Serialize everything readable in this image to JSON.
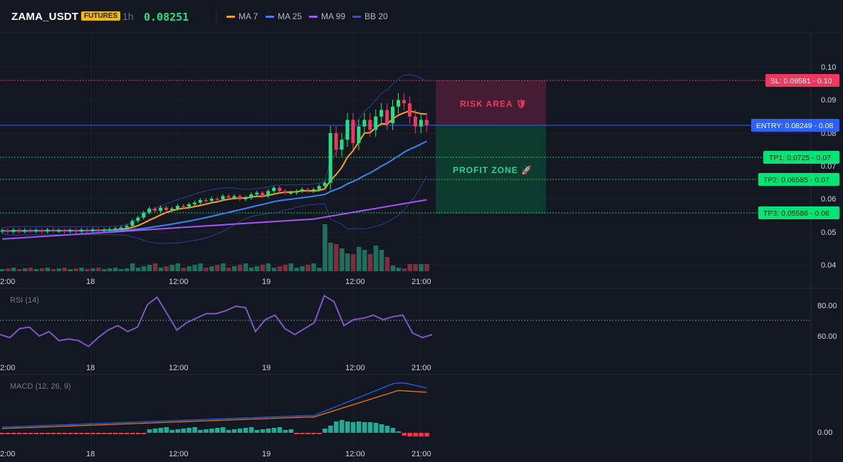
{
  "header": {
    "symbol": "ZAMA_USDT",
    "badge": "FUTURES",
    "interval": "1h",
    "price": "0.08251",
    "indicators": [
      {
        "label": "MA 7",
        "color": "#f7a21b"
      },
      {
        "label": "MA 25",
        "color": "#3b82f6"
      },
      {
        "label": "MA 99",
        "color": "#a855f7"
      },
      {
        "label": "BB 20",
        "color": "#3f51b5"
      }
    ]
  },
  "price_axis": {
    "ticks": [
      "0.10",
      "0.09",
      "0.08",
      "0.07",
      "0.06",
      "0.05",
      "0.04"
    ]
  },
  "levels": {
    "sl": {
      "label": "SL: 0.09581 - 0.10",
      "value": 0.09581,
      "color": "#f23660"
    },
    "entry": {
      "label": "ENTRY: 0.08249 - 0.08",
      "value": 0.08249,
      "color": "#2962ff"
    },
    "tp1": {
      "label": "TP1: 0.0725 - 0.07",
      "value": 0.0725,
      "color": "#00e676"
    },
    "tp2": {
      "label": "TP2: 0.06585 - 0.07",
      "value": 0.06585,
      "color": "#00e676"
    },
    "tp3": {
      "label": "TP3: 0.05586 - 0.06",
      "value": 0.05586,
      "color": "#00e676"
    }
  },
  "zones": {
    "risk_label": "RISK AREA 🛡",
    "profit_label": "PROFIT ZONE 🚀"
  },
  "time_axis": {
    "labels": [
      "2:00",
      "18",
      "12:00",
      "19",
      "12:00",
      "21:00"
    ]
  },
  "rsi": {
    "title": "RSI (14)",
    "ticks": [
      "80.00",
      "60.00"
    ]
  },
  "macd": {
    "title": "MACD (12, 26, 9)",
    "ticks": [
      "0.00"
    ]
  },
  "chart_data": {
    "type": "candlestick",
    "closes": [
      0.0506,
      0.0502,
      0.0508,
      0.0503,
      0.0507,
      0.0504,
      0.0507,
      0.0503,
      0.0508,
      0.0505,
      0.0506,
      0.0504,
      0.0507,
      0.0503,
      0.0508,
      0.0505,
      0.0509,
      0.0507,
      0.0508,
      0.051,
      0.0512,
      0.0515,
      0.052,
      0.0535,
      0.0545,
      0.056,
      0.0572,
      0.0565,
      0.0575,
      0.0568,
      0.0572,
      0.058,
      0.0578,
      0.0585,
      0.059,
      0.0598,
      0.0595,
      0.0602,
      0.06,
      0.061,
      0.0605,
      0.061,
      0.06,
      0.0605,
      0.0615,
      0.062,
      0.061,
      0.0625,
      0.0635,
      0.0625,
      0.062,
      0.062,
      0.0625,
      0.063,
      0.0625,
      0.063,
      0.064,
      0.065,
      0.08,
      0.075,
      0.078,
      0.084,
      0.077,
      0.082,
      0.084,
      0.081,
      0.085,
      0.087,
      0.083,
      0.088,
      0.09,
      0.089,
      0.085,
      0.082,
      0.084,
      0.0825
    ]
  }
}
